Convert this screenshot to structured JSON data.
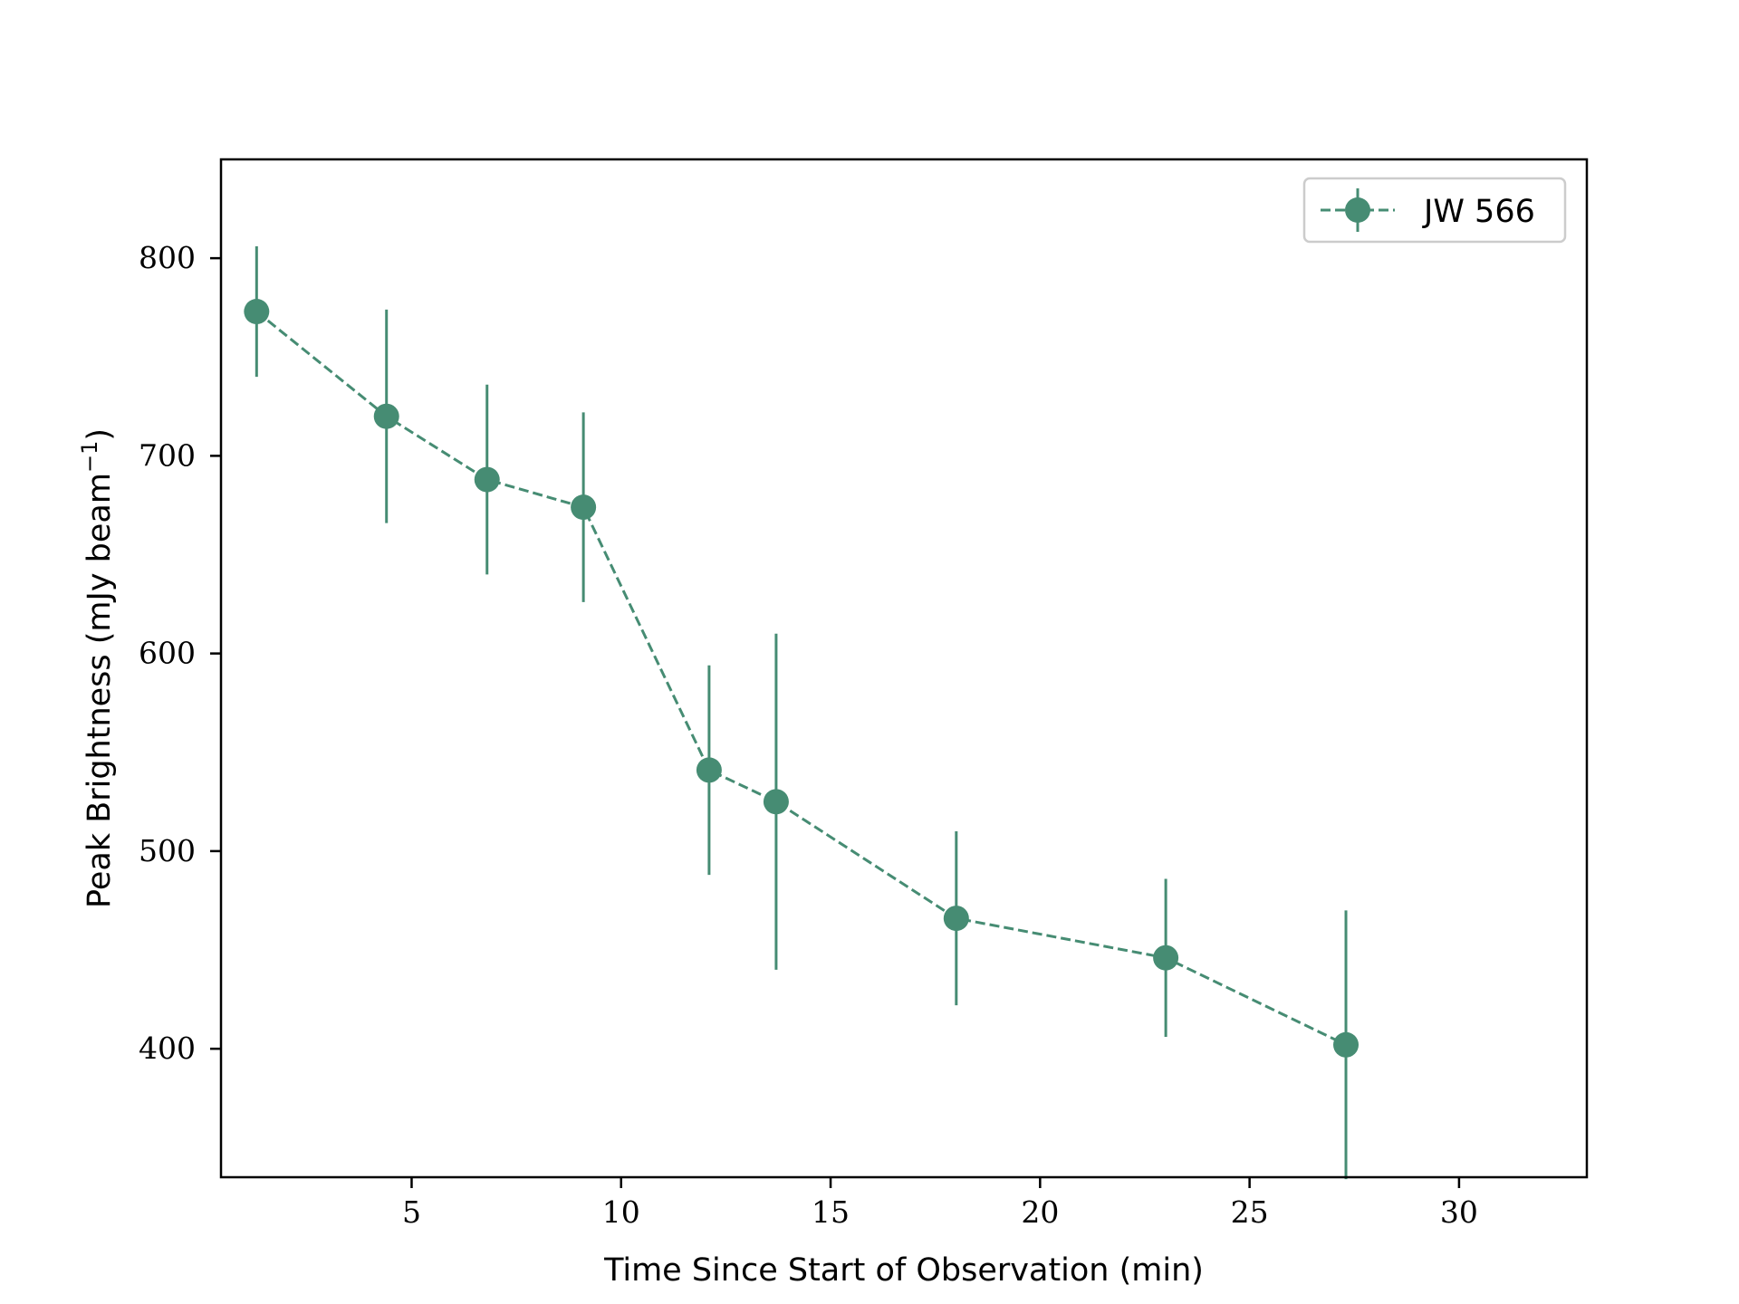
{
  "chart_data": {
    "type": "line",
    "xlabel": "Time Since Start of Observation (min)",
    "ylabel": "Peak Brightness (mJy beam",
    "ylabel_superscript": "−1",
    "ylabel_close": ")",
    "xlim": [
      0.45,
      33.05
    ],
    "ylim": [
      335,
      850
    ],
    "xticks": [
      5,
      10,
      15,
      20,
      25,
      30
    ],
    "yticks": [
      400,
      500,
      600,
      700,
      800
    ],
    "grid": false,
    "legend_position": "top-right",
    "series": [
      {
        "name": "JW 566",
        "color": "#468c73",
        "line_style": "dashed",
        "marker": "circle",
        "x": [
          1.3,
          4.4,
          6.8,
          9.1,
          12.1,
          13.7,
          18.0,
          23.0,
          27.3
        ],
        "y": [
          773,
          720,
          688,
          674,
          541,
          525,
          466,
          446,
          402
        ],
        "yerr": [
          33,
          54,
          48,
          48,
          53,
          85,
          44,
          40,
          68
        ]
      }
    ]
  }
}
